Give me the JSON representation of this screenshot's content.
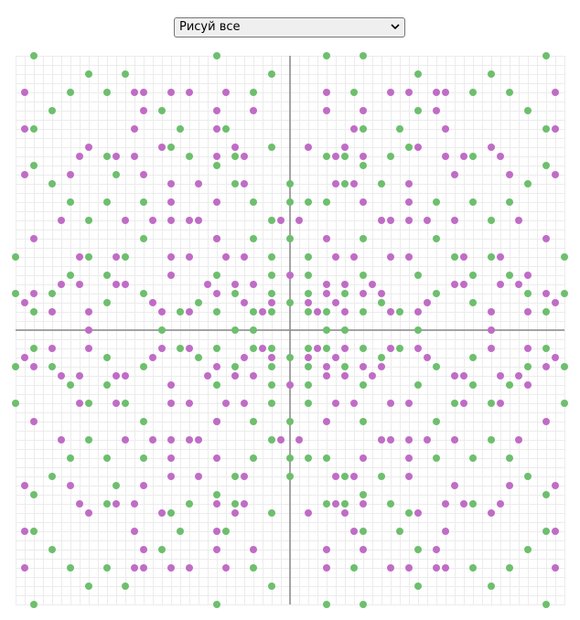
{
  "ui": {
    "select_label": "Рисуй все"
  },
  "chart_data": {
    "type": "scatter",
    "xlim": [
      -30,
      30
    ],
    "ylim": [
      -30,
      30
    ],
    "grid": true,
    "series": [
      {
        "color": "#6dbf6d",
        "x": [
          -28,
          -8,
          4,
          8,
          28,
          -22,
          -18,
          -2,
          14,
          22,
          -24,
          -20,
          -4,
          7,
          20,
          24,
          -26,
          -14,
          14,
          26,
          -28,
          -12,
          -7,
          8,
          12,
          28,
          -13,
          -2,
          13,
          -20,
          -11,
          -6,
          4,
          6,
          11,
          20,
          -28,
          -8,
          8,
          28,
          -19,
          -26,
          -6,
          0,
          6,
          10,
          26,
          -24,
          -20,
          -16,
          -4,
          0,
          2,
          4,
          16,
          20,
          24,
          -22,
          -2,
          22,
          -16,
          -8,
          -4,
          0,
          8,
          16,
          -30,
          -22,
          -18,
          -2,
          2,
          18,
          22,
          30,
          -24,
          -20,
          -8,
          -2,
          2,
          8,
          14,
          20,
          24,
          -30,
          -26,
          -16,
          -6,
          -2,
          2,
          6,
          16,
          26,
          30,
          -20,
          -10,
          0,
          10,
          20,
          -28,
          -12,
          -8,
          -4,
          -2,
          2,
          4,
          8,
          12,
          28,
          -28,
          -8,
          4,
          8,
          28,
          -22,
          -18,
          -2,
          14,
          22,
          -24,
          -20,
          -4,
          7,
          20,
          24,
          -26,
          -14,
          14,
          26,
          -28,
          -12,
          -7,
          8,
          12,
          28,
          -13,
          -2,
          13,
          -20,
          -11,
          -6,
          4,
          6,
          11,
          20,
          -28,
          -8,
          8,
          28,
          -19,
          -26,
          -6,
          0,
          6,
          10,
          26,
          -24,
          -20,
          -16,
          -4,
          0,
          2,
          4,
          16,
          20,
          24,
          -22,
          -2,
          22,
          -16,
          -8,
          -4,
          0,
          8,
          16,
          -30,
          -22,
          -18,
          -2,
          2,
          18,
          22,
          30,
          -24,
          -20,
          -8,
          -2,
          2,
          8,
          14,
          20,
          24,
          -30,
          -26,
          -16,
          -6,
          -2,
          2,
          6,
          16,
          26,
          30,
          -20,
          -10,
          0,
          10,
          20,
          -28,
          -12,
          -8,
          -4,
          -2,
          2,
          4,
          8,
          12,
          28,
          -14,
          -6,
          -4,
          4,
          6,
          14
        ],
        "values": [
          30,
          30,
          30,
          30,
          30,
          28,
          28,
          28,
          28,
          28,
          26,
          26,
          26,
          26,
          26,
          26,
          24,
          24,
          24,
          24,
          22,
          22,
          22,
          22,
          22,
          22,
          20,
          20,
          20,
          19,
          19,
          19,
          19,
          19,
          19,
          19,
          18,
          18,
          18,
          18,
          17,
          16,
          16,
          16,
          16,
          16,
          16,
          14,
          14,
          14,
          14,
          14,
          14,
          14,
          14,
          14,
          14,
          12,
          12,
          12,
          10,
          10,
          10,
          10,
          10,
          10,
          8,
          8,
          8,
          8,
          8,
          8,
          8,
          8,
          6,
          6,
          6,
          6,
          6,
          6,
          6,
          6,
          6,
          4,
          4,
          4,
          4,
          4,
          4,
          4,
          4,
          4,
          4,
          3,
          3,
          3,
          3,
          3,
          2,
          2,
          2,
          2,
          2,
          2,
          2,
          2,
          2,
          2,
          -30,
          -30,
          -30,
          -30,
          -30,
          -28,
          -28,
          -28,
          -28,
          -28,
          -26,
          -26,
          -26,
          -26,
          -26,
          -26,
          -24,
          -24,
          -24,
          -24,
          -22,
          -22,
          -22,
          -22,
          -22,
          -22,
          -20,
          -20,
          -20,
          -19,
          -19,
          -19,
          -19,
          -19,
          -19,
          -19,
          -18,
          -18,
          -18,
          -18,
          -17,
          -16,
          -16,
          -16,
          -16,
          -16,
          -16,
          -14,
          -14,
          -14,
          -14,
          -14,
          -14,
          -14,
          -14,
          -14,
          -14,
          -12,
          -12,
          -12,
          -10,
          -10,
          -10,
          -10,
          -10,
          -10,
          -8,
          -8,
          -8,
          -8,
          -8,
          -8,
          -8,
          -8,
          -6,
          -6,
          -6,
          -6,
          -6,
          -6,
          -6,
          -6,
          -6,
          -4,
          -4,
          -4,
          -4,
          -4,
          -4,
          -4,
          -4,
          -4,
          -4,
          -3,
          -3,
          -3,
          -3,
          -3,
          -2,
          -2,
          -2,
          -2,
          -2,
          -2,
          -2,
          -2,
          -2,
          -2,
          0,
          0,
          0,
          0,
          0,
          0
        ]
      },
      {
        "color": "#c06cc6",
        "x": [
          -29,
          -17,
          -16,
          -13,
          -11,
          -7,
          4,
          11,
          13,
          16,
          17,
          29,
          -16,
          -8,
          -4,
          4,
          8,
          16,
          -29,
          -17,
          -8,
          7,
          17,
          29,
          -22,
          -14,
          -6,
          2,
          6,
          14,
          22,
          -23,
          -19,
          -17,
          -8,
          -5,
          5,
          8,
          17,
          19,
          23,
          -29,
          -24,
          -16,
          18,
          24,
          29,
          -13,
          -10,
          -5,
          5,
          7,
          13,
          -13,
          -8,
          8,
          13,
          -25,
          -18,
          -15,
          -13,
          -11,
          -10,
          -1,
          1,
          10,
          11,
          13,
          15,
          18,
          25,
          -28,
          -8,
          4,
          28,
          -23,
          -19,
          -13,
          -11,
          -7,
          -5,
          5,
          7,
          11,
          13,
          19,
          23,
          -13,
          0,
          26,
          -25,
          -23,
          -19,
          -18,
          -9,
          -6,
          -4,
          4,
          6,
          9,
          18,
          19,
          23,
          25,
          -28,
          -8,
          4,
          8,
          10,
          28,
          -29,
          -15,
          -5,
          -2,
          2,
          5,
          15,
          29,
          -26,
          -22,
          -14,
          -11,
          -3,
          3,
          6,
          11,
          14,
          22,
          26,
          -29,
          -17,
          -16,
          -13,
          -11,
          -7,
          4,
          11,
          13,
          16,
          17,
          29,
          -16,
          -8,
          -4,
          4,
          8,
          16,
          -29,
          -17,
          -8,
          7,
          17,
          29,
          -22,
          -14,
          -6,
          2,
          6,
          14,
          22,
          -23,
          -19,
          -17,
          -8,
          -5,
          5,
          8,
          17,
          19,
          23,
          -29,
          -24,
          -16,
          18,
          24,
          29,
          -13,
          -10,
          -5,
          5,
          7,
          13,
          -13,
          -8,
          8,
          13,
          -25,
          -18,
          -15,
          -13,
          -11,
          -10,
          -1,
          1,
          10,
          11,
          13,
          15,
          18,
          25,
          -28,
          -8,
          4,
          28,
          -23,
          -19,
          -13,
          -11,
          -7,
          -5,
          5,
          7,
          11,
          13,
          19,
          23,
          -13,
          0,
          26,
          -25,
          -23,
          -19,
          -18,
          -9,
          -6,
          -4,
          4,
          6,
          9,
          18,
          19,
          23,
          25,
          -28,
          -8,
          4,
          8,
          10,
          28,
          -29,
          -15,
          -5,
          -2,
          2,
          5,
          15,
          29,
          -26,
          -22,
          -14,
          -11,
          -3,
          3,
          6,
          11,
          14,
          22,
          26,
          -22,
          22
        ],
        "values": [
          26,
          26,
          26,
          26,
          26,
          26,
          26,
          26,
          26,
          26,
          26,
          26,
          24,
          24,
          24,
          24,
          24,
          24,
          22,
          22,
          22,
          22,
          22,
          22,
          20,
          20,
          20,
          20,
          20,
          20,
          20,
          19,
          19,
          19,
          19,
          19,
          19,
          19,
          19,
          19,
          19,
          17,
          17,
          17,
          17,
          17,
          17,
          16,
          16,
          16,
          16,
          16,
          16,
          14,
          14,
          14,
          14,
          12,
          12,
          12,
          12,
          12,
          12,
          12,
          12,
          12,
          12,
          12,
          12,
          12,
          12,
          10,
          10,
          10,
          10,
          8,
          8,
          8,
          8,
          8,
          8,
          8,
          8,
          8,
          8,
          8,
          8,
          6,
          6,
          6,
          5,
          5,
          5,
          5,
          5,
          5,
          5,
          5,
          5,
          5,
          5,
          5,
          5,
          5,
          4,
          4,
          4,
          4,
          4,
          4,
          3,
          3,
          3,
          3,
          3,
          3,
          3,
          3,
          2,
          2,
          2,
          2,
          2,
          2,
          2,
          2,
          2,
          2,
          2,
          -26,
          -26,
          -26,
          -26,
          -26,
          -26,
          -26,
          -26,
          -26,
          -26,
          -26,
          -26,
          -24,
          -24,
          -24,
          -24,
          -24,
          -24,
          -22,
          -22,
          -22,
          -22,
          -22,
          -22,
          -20,
          -20,
          -20,
          -20,
          -20,
          -20,
          -20,
          -19,
          -19,
          -19,
          -19,
          -19,
          -19,
          -19,
          -19,
          -19,
          -19,
          -17,
          -17,
          -17,
          -17,
          -17,
          -17,
          -16,
          -16,
          -16,
          -16,
          -16,
          -16,
          -14,
          -14,
          -14,
          -14,
          -12,
          -12,
          -12,
          -12,
          -12,
          -12,
          -12,
          -12,
          -12,
          -12,
          -12,
          -12,
          -12,
          -12,
          -10,
          -10,
          -10,
          -10,
          -8,
          -8,
          -8,
          -8,
          -8,
          -8,
          -8,
          -8,
          -8,
          -8,
          -8,
          -8,
          -6,
          -6,
          -6,
          -5,
          -5,
          -5,
          -5,
          -5,
          -5,
          -5,
          -5,
          -5,
          -5,
          -5,
          -5,
          -5,
          -5,
          -4,
          -4,
          -4,
          -4,
          -4,
          -4,
          -3,
          -3,
          -3,
          -3,
          -3,
          -3,
          -3,
          -3,
          -2,
          -2,
          -2,
          -2,
          -2,
          -2,
          -2,
          -2,
          -2,
          -2,
          -2,
          0,
          0
        ]
      }
    ]
  }
}
